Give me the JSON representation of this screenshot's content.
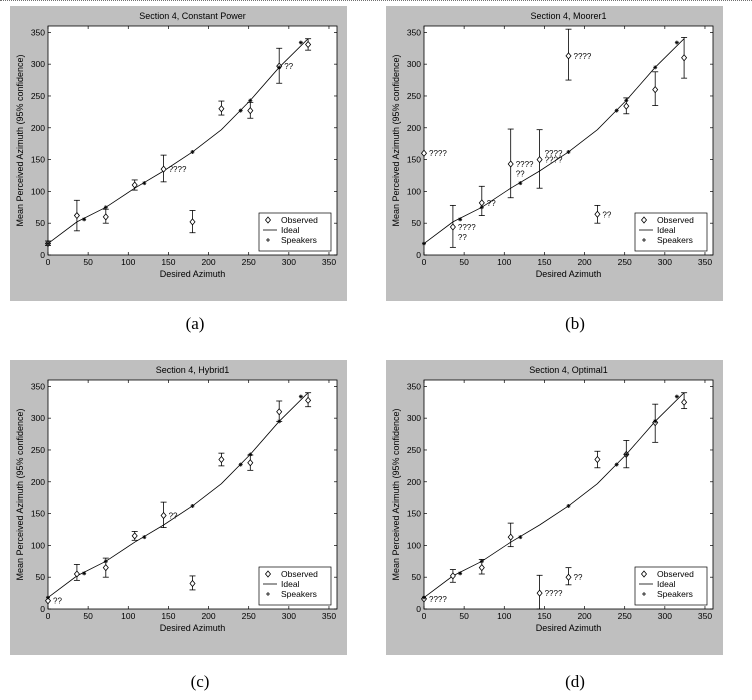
{
  "chart_data": [
    {
      "type": "scatter",
      "title": "Section 4, Constant Power",
      "xlabel": "Desired Azimuth",
      "ylabel": "Mean Perceived Azimuth (95% confidence)",
      "caption": "(a)",
      "xlim": [
        0,
        360
      ],
      "ylim": [
        0,
        360
      ],
      "xticks": [
        0,
        50,
        100,
        150,
        200,
        250,
        300,
        350
      ],
      "yticks": [
        0,
        50,
        100,
        150,
        200,
        250,
        300,
        350
      ],
      "legend": {
        "position": "bottom-right",
        "entries": [
          "Observed",
          "Ideal",
          "Speakers"
        ]
      },
      "ideal": [
        [
          0,
          18
        ],
        [
          36,
          52
        ],
        [
          72,
          75
        ],
        [
          108,
          105
        ],
        [
          144,
          132
        ],
        [
          180,
          162
        ],
        [
          216,
          197
        ],
        [
          252,
          243
        ],
        [
          288,
          295
        ],
        [
          324,
          340
        ]
      ],
      "speakers": [
        [
          0,
          18
        ],
        [
          45,
          56
        ],
        [
          72,
          75
        ],
        [
          120,
          113
        ],
        [
          180,
          162
        ],
        [
          240,
          227
        ],
        [
          252,
          243
        ],
        [
          288,
          295
        ],
        [
          315,
          334
        ]
      ],
      "observed": [
        {
          "x": 0,
          "y": 18,
          "lo": 15,
          "hi": 22,
          "note": ""
        },
        {
          "x": 36,
          "y": 62,
          "lo": 38,
          "hi": 86,
          "note": ""
        },
        {
          "x": 72,
          "y": 60,
          "lo": 50,
          "hi": 72,
          "note": ""
        },
        {
          "x": 108,
          "y": 110,
          "lo": 102,
          "hi": 118,
          "note": ""
        },
        {
          "x": 144,
          "y": 135,
          "lo": 115,
          "hi": 157,
          "note": "????"
        },
        {
          "x": 180,
          "y": 52,
          "lo": 35,
          "hi": 70,
          "note": ""
        },
        {
          "x": 216,
          "y": 230,
          "lo": 220,
          "hi": 242,
          "note": ""
        },
        {
          "x": 252,
          "y": 227,
          "lo": 215,
          "hi": 240,
          "note": ""
        },
        {
          "x": 288,
          "y": 297,
          "lo": 270,
          "hi": 325,
          "note": "??"
        },
        {
          "x": 324,
          "y": 331,
          "lo": 322,
          "hi": 340,
          "note": ""
        }
      ]
    },
    {
      "type": "scatter",
      "title": "Section 4, Moorer1",
      "xlabel": "Desired Azimuth",
      "ylabel": "Mean Perceived Azimuth (95% confidence)",
      "caption": "(b)",
      "xlim": [
        0,
        360
      ],
      "ylim": [
        0,
        360
      ],
      "xticks": [
        0,
        50,
        100,
        150,
        200,
        250,
        300,
        350
      ],
      "yticks": [
        0,
        50,
        100,
        150,
        200,
        250,
        300,
        350
      ],
      "legend": {
        "position": "bottom-right",
        "entries": [
          "Observed",
          "Ideal",
          "Speakers"
        ]
      },
      "ideal": [
        [
          0,
          18
        ],
        [
          36,
          52
        ],
        [
          72,
          75
        ],
        [
          108,
          105
        ],
        [
          144,
          132
        ],
        [
          180,
          162
        ],
        [
          216,
          197
        ],
        [
          252,
          243
        ],
        [
          288,
          295
        ],
        [
          324,
          340
        ]
      ],
      "speakers": [
        [
          0,
          18
        ],
        [
          45,
          56
        ],
        [
          72,
          75
        ],
        [
          120,
          113
        ],
        [
          180,
          162
        ],
        [
          240,
          227
        ],
        [
          252,
          243
        ],
        [
          288,
          295
        ],
        [
          315,
          334
        ]
      ],
      "observed": [
        {
          "x": 0,
          "y": 160,
          "lo": null,
          "hi": null,
          "note": "????"
        },
        {
          "x": 36,
          "y": 44,
          "lo": 12,
          "hi": 78,
          "note": "????"
        },
        {
          "x": 72,
          "y": 82,
          "lo": 62,
          "hi": 108,
          "note": "??"
        },
        {
          "x": 108,
          "y": 143,
          "lo": 90,
          "hi": 198,
          "note": "????"
        },
        {
          "x": 144,
          "y": 150,
          "lo": 105,
          "hi": 197,
          "note": "????"
        },
        {
          "x": 180,
          "y": 313,
          "lo": 275,
          "hi": 355,
          "note": "????"
        },
        {
          "x": 216,
          "y": 64,
          "lo": 50,
          "hi": 78,
          "note": "??"
        },
        {
          "x": 252,
          "y": 234,
          "lo": 222,
          "hi": 247,
          "note": ""
        },
        {
          "x": 288,
          "y": 260,
          "lo": 235,
          "hi": 288,
          "note": ""
        },
        {
          "x": 324,
          "y": 310,
          "lo": 278,
          "hi": 342,
          "note": ""
        }
      ],
      "extra_notes": [
        {
          "x": 36,
          "y": 28,
          "note": "??"
        },
        {
          "x": 108,
          "y": 128,
          "note": "??"
        },
        {
          "x": 144,
          "y": 160,
          "note": "????"
        }
      ]
    },
    {
      "type": "scatter",
      "title": "Section 4, Hybrid1",
      "xlabel": "Desired Azimuth",
      "ylabel": "Mean Perceived Azimuth (95% confidence)",
      "caption": "(c)",
      "xlim": [
        0,
        360
      ],
      "ylim": [
        0,
        360
      ],
      "xticks": [
        0,
        50,
        100,
        150,
        200,
        250,
        300,
        350
      ],
      "yticks": [
        0,
        50,
        100,
        150,
        200,
        250,
        300,
        350
      ],
      "legend": {
        "position": "bottom-right",
        "entries": [
          "Observed",
          "Ideal",
          "Speakers"
        ]
      },
      "ideal": [
        [
          0,
          18
        ],
        [
          36,
          52
        ],
        [
          72,
          75
        ],
        [
          108,
          105
        ],
        [
          144,
          132
        ],
        [
          180,
          162
        ],
        [
          216,
          197
        ],
        [
          252,
          243
        ],
        [
          288,
          295
        ],
        [
          324,
          340
        ]
      ],
      "speakers": [
        [
          0,
          18
        ],
        [
          45,
          56
        ],
        [
          72,
          75
        ],
        [
          120,
          113
        ],
        [
          180,
          162
        ],
        [
          240,
          227
        ],
        [
          252,
          243
        ],
        [
          288,
          295
        ],
        [
          315,
          334
        ]
      ],
      "observed": [
        {
          "x": 0,
          "y": 13,
          "lo": null,
          "hi": null,
          "note": "??"
        },
        {
          "x": 36,
          "y": 55,
          "lo": 45,
          "hi": 70,
          "note": ""
        },
        {
          "x": 72,
          "y": 65,
          "lo": 50,
          "hi": 80,
          "note": ""
        },
        {
          "x": 108,
          "y": 115,
          "lo": 108,
          "hi": 122,
          "note": ""
        },
        {
          "x": 144,
          "y": 147,
          "lo": 128,
          "hi": 168,
          "note": "??"
        },
        {
          "x": 180,
          "y": 40,
          "lo": 30,
          "hi": 52,
          "note": ""
        },
        {
          "x": 216,
          "y": 235,
          "lo": 225,
          "hi": 245,
          "note": ""
        },
        {
          "x": 252,
          "y": 230,
          "lo": 218,
          "hi": 242,
          "note": ""
        },
        {
          "x": 288,
          "y": 310,
          "lo": 295,
          "hi": 327,
          "note": ""
        },
        {
          "x": 324,
          "y": 328,
          "lo": 318,
          "hi": 340,
          "note": ""
        }
      ]
    },
    {
      "type": "scatter",
      "title": "Section 4, Optimal1",
      "xlabel": "Desired Azimuth",
      "ylabel": "Mean Perceived Azimuth (95% confidence)",
      "caption": "(d)",
      "xlim": [
        0,
        360
      ],
      "ylim": [
        0,
        360
      ],
      "xticks": [
        0,
        50,
        100,
        150,
        200,
        250,
        300,
        350
      ],
      "yticks": [
        0,
        50,
        100,
        150,
        200,
        250,
        300,
        350
      ],
      "legend": {
        "position": "bottom-right",
        "entries": [
          "Observed",
          "Ideal",
          "Speakers"
        ]
      },
      "ideal": [
        [
          0,
          18
        ],
        [
          36,
          52
        ],
        [
          72,
          75
        ],
        [
          108,
          105
        ],
        [
          144,
          132
        ],
        [
          180,
          162
        ],
        [
          216,
          197
        ],
        [
          252,
          243
        ],
        [
          288,
          295
        ],
        [
          324,
          340
        ]
      ],
      "speakers": [
        [
          0,
          18
        ],
        [
          45,
          56
        ],
        [
          72,
          75
        ],
        [
          120,
          113
        ],
        [
          180,
          162
        ],
        [
          240,
          227
        ],
        [
          252,
          243
        ],
        [
          288,
          295
        ],
        [
          315,
          334
        ]
      ],
      "observed": [
        {
          "x": 0,
          "y": 16,
          "lo": null,
          "hi": null,
          "note": "????"
        },
        {
          "x": 36,
          "y": 52,
          "lo": 42,
          "hi": 62,
          "note": ""
        },
        {
          "x": 72,
          "y": 65,
          "lo": 55,
          "hi": 78,
          "note": ""
        },
        {
          "x": 108,
          "y": 113,
          "lo": 98,
          "hi": 135,
          "note": ""
        },
        {
          "x": 144,
          "y": 25,
          "lo": 0,
          "hi": 53,
          "note": "????"
        },
        {
          "x": 180,
          "y": 50,
          "lo": 38,
          "hi": 65,
          "note": "??"
        },
        {
          "x": 216,
          "y": 235,
          "lo": 222,
          "hi": 248,
          "note": ""
        },
        {
          "x": 252,
          "y": 243,
          "lo": 222,
          "hi": 265,
          "note": ""
        },
        {
          "x": 288,
          "y": 293,
          "lo": 262,
          "hi": 322,
          "note": ""
        },
        {
          "x": 324,
          "y": 325,
          "lo": 315,
          "hi": 340,
          "note": ""
        }
      ]
    }
  ]
}
